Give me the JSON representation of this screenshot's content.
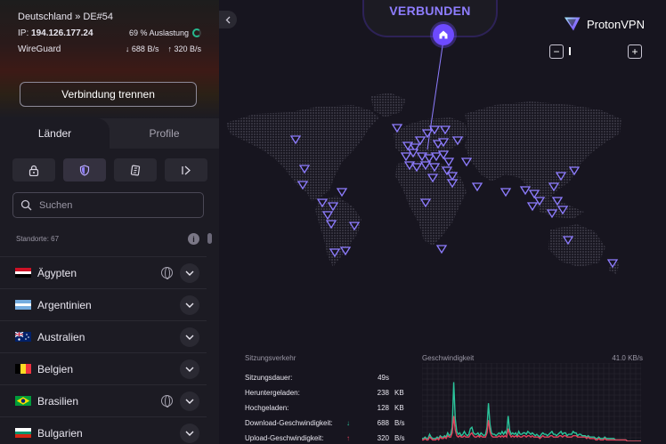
{
  "connection": {
    "server": "Deutschland » DE#54",
    "ip_label": "IP:",
    "ip": "194.126.177.24",
    "load": "69 % Auslastung",
    "protocol": "WireGuard",
    "download": "688 B/s",
    "upload": "320 B/s",
    "disconnect_label": "Verbindung trennen"
  },
  "tabs": [
    {
      "label": "Länder",
      "active": true
    },
    {
      "label": "Profile",
      "active": false
    }
  ],
  "filters": [
    "lock-icon",
    "shield-icon",
    "p2p-icon",
    "tor-icon"
  ],
  "search": {
    "placeholder": "Suchen"
  },
  "locations_label": "Standorte: 67",
  "countries": [
    {
      "name": "Ägypten",
      "flag": "egypt",
      "globe": true
    },
    {
      "name": "Argentinien",
      "flag": "argentina",
      "globe": false
    },
    {
      "name": "Australien",
      "flag": "australia",
      "globe": false
    },
    {
      "name": "Belgien",
      "flag": "belgium",
      "globe": false
    },
    {
      "name": "Brasilien",
      "flag": "brazil",
      "globe": true
    },
    {
      "name": "Bulgarien",
      "flag": "bulgaria",
      "globe": false
    }
  ],
  "map": {
    "status": "VERBUNDEN",
    "brand": "ProtonVPN",
    "accent": "#6d4aff"
  },
  "session": {
    "title": "Sitzungsverkehr",
    "rows": [
      {
        "label": "Sitzungsdauer:",
        "value": "49s",
        "unit": "",
        "arrow": ""
      },
      {
        "label": "Heruntergeladen:",
        "value": "238",
        "unit": "KB",
        "arrow": ""
      },
      {
        "label": "Hochgeladen:",
        "value": "128",
        "unit": "KB",
        "arrow": ""
      },
      {
        "label": "Download-Geschwindigkeit:",
        "value": "688",
        "unit": "B/s",
        "arrow": "↓"
      },
      {
        "label": "Upload-Geschwindigkeit:",
        "value": "320",
        "unit": "B/s",
        "arrow": "↑"
      }
    ]
  },
  "speed": {
    "title": "Geschwindigkeit",
    "max": "41.0 KB/s",
    "download_color": "#2bc49b",
    "upload_color": "#e2415b",
    "download_series": [
      0.02,
      0.02,
      0.03,
      0.02,
      0.02,
      0.05,
      0.03,
      0.02,
      0.02,
      0.02,
      0.03,
      0.02,
      0.04,
      0.03,
      0.03,
      0.04,
      0.03,
      0.06,
      0.04,
      0.05,
      0.1,
      0.42,
      0.16,
      0.07,
      0.05,
      0.06,
      0.04,
      0.05,
      0.07,
      0.05,
      0.04,
      0.05,
      0.09,
      0.1,
      0.06,
      0.05,
      0.05,
      0.06,
      0.04,
      0.06,
      0.05,
      0.04,
      0.05,
      0.1,
      0.27,
      0.12,
      0.06,
      0.05,
      0.05,
      0.04,
      0.05,
      0.06,
      0.05,
      0.07,
      0.05,
      0.07,
      0.05,
      0.18,
      0.08,
      0.05,
      0.06,
      0.05,
      0.06,
      0.04,
      0.07,
      0.05,
      0.05,
      0.06,
      0.06,
      0.05,
      0.07,
      0.06,
      0.05,
      0.06,
      0.05,
      0.04,
      0.05,
      0.04,
      0.03,
      0.05,
      0.06,
      0.05,
      0.05,
      0.04,
      0.05,
      0.06,
      0.07,
      0.05,
      0.05,
      0.04,
      0.05,
      0.06,
      0.07,
      0.05,
      0.06,
      0.06,
      0.04,
      0.05,
      0.05,
      0.05,
      0.07,
      0.06,
      0.06,
      0.04,
      0.05,
      0.05,
      0.04,
      0.04,
      0.04,
      0.03,
      0.04,
      0.03,
      0.03,
      0.03,
      0.03,
      0.02,
      0.02,
      0.03,
      0.02,
      0.02,
      0.02,
      0.03,
      0.02,
      0.02,
      0.02,
      0.02,
      0.02,
      0.02,
      0.01,
      0.01,
      0.01,
      0.01,
      0.01,
      0.01,
      0.01,
      0.01,
      0.0,
      0.0,
      0.0,
      0.0,
      0.0,
      0.0,
      0.0,
      0.0,
      0.0,
      0.0
    ],
    "upload_series": [
      0.01,
      0.01,
      0.02,
      0.01,
      0.01,
      0.03,
      0.02,
      0.01,
      0.01,
      0.01,
      0.02,
      0.01,
      0.03,
      0.02,
      0.02,
      0.03,
      0.02,
      0.04,
      0.03,
      0.03,
      0.06,
      0.18,
      0.08,
      0.04,
      0.03,
      0.04,
      0.03,
      0.03,
      0.04,
      0.03,
      0.03,
      0.03,
      0.05,
      0.06,
      0.04,
      0.03,
      0.03,
      0.04,
      0.03,
      0.04,
      0.03,
      0.03,
      0.03,
      0.06,
      0.15,
      0.07,
      0.04,
      0.03,
      0.03,
      0.03,
      0.03,
      0.04,
      0.03,
      0.04,
      0.03,
      0.04,
      0.03,
      0.09,
      0.05,
      0.03,
      0.04,
      0.03,
      0.04,
      0.03,
      0.04,
      0.03,
      0.03,
      0.04,
      0.04,
      0.03,
      0.04,
      0.04,
      0.03,
      0.04,
      0.03,
      0.03,
      0.03,
      0.03,
      0.02,
      0.03,
      0.04,
      0.03,
      0.03,
      0.03,
      0.03,
      0.04,
      0.04,
      0.03,
      0.03,
      0.03,
      0.03,
      0.04,
      0.04,
      0.03,
      0.04,
      0.04,
      0.03,
      0.03,
      0.03,
      0.03,
      0.04,
      0.04,
      0.04,
      0.03,
      0.03,
      0.03,
      0.03,
      0.03,
      0.03,
      0.02,
      0.03,
      0.02,
      0.02,
      0.02,
      0.02,
      0.01,
      0.01,
      0.02,
      0.01,
      0.01,
      0.01,
      0.02,
      0.01,
      0.01,
      0.01,
      0.01,
      0.01,
      0.01,
      0.01,
      0.01,
      0.01,
      0.01,
      0.01,
      0.01,
      0.01,
      0.01,
      0.0,
      0.0,
      0.0,
      0.0,
      0.0,
      0.0,
      0.0,
      0.0,
      0.0,
      0.0
    ]
  }
}
